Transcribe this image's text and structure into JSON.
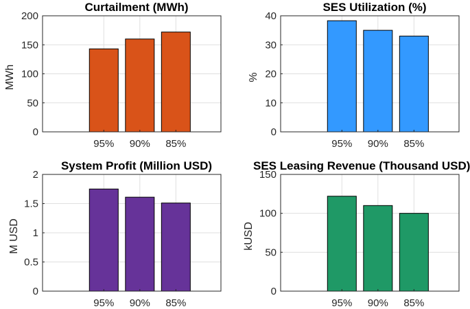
{
  "chart_data": [
    {
      "type": "bar",
      "title": "Curtailment (MWh)",
      "ylabel": "MWh",
      "categories": [
        "95%",
        "90%",
        "85%"
      ],
      "values": [
        143,
        160,
        172
      ],
      "ylim": [
        0,
        200
      ],
      "yticks": [
        0,
        50,
        100,
        150,
        200
      ],
      "ytick_labels": [
        "0",
        "50",
        "100",
        "150",
        "200"
      ],
      "color": "#D95319",
      "grid": true
    },
    {
      "type": "bar",
      "title": "SES Utilization (%)",
      "ylabel": "%",
      "categories": [
        "95%",
        "90%",
        "85%"
      ],
      "values": [
        38.3,
        35.0,
        33.0
      ],
      "ylim": [
        0,
        40
      ],
      "yticks": [
        0,
        10,
        20,
        30,
        40
      ],
      "ytick_labels": [
        "0",
        "10",
        "20",
        "30",
        "40"
      ],
      "color": "#3399FF",
      "grid": true
    },
    {
      "type": "bar",
      "title": "System Profit (Million USD)",
      "ylabel": "M USD",
      "categories": [
        "95%",
        "90%",
        "85%"
      ],
      "values": [
        1.75,
        1.61,
        1.51
      ],
      "ylim": [
        0,
        2
      ],
      "yticks": [
        0,
        0.5,
        1,
        1.5,
        2
      ],
      "ytick_labels": [
        "0",
        "0.5",
        "1",
        "1.5",
        "2"
      ],
      "color": "#663399",
      "grid": true
    },
    {
      "type": "bar",
      "title": "SES Leasing Revenue (Thousand USD)",
      "ylabel": "kUSD",
      "categories": [
        "95%",
        "90%",
        "85%"
      ],
      "values": [
        122,
        110,
        100
      ],
      "ylim": [
        0,
        150
      ],
      "yticks": [
        0,
        50,
        100,
        150
      ],
      "ytick_labels": [
        "0",
        "50",
        "100",
        "150"
      ],
      "color": "#1F9966",
      "grid": true
    }
  ]
}
